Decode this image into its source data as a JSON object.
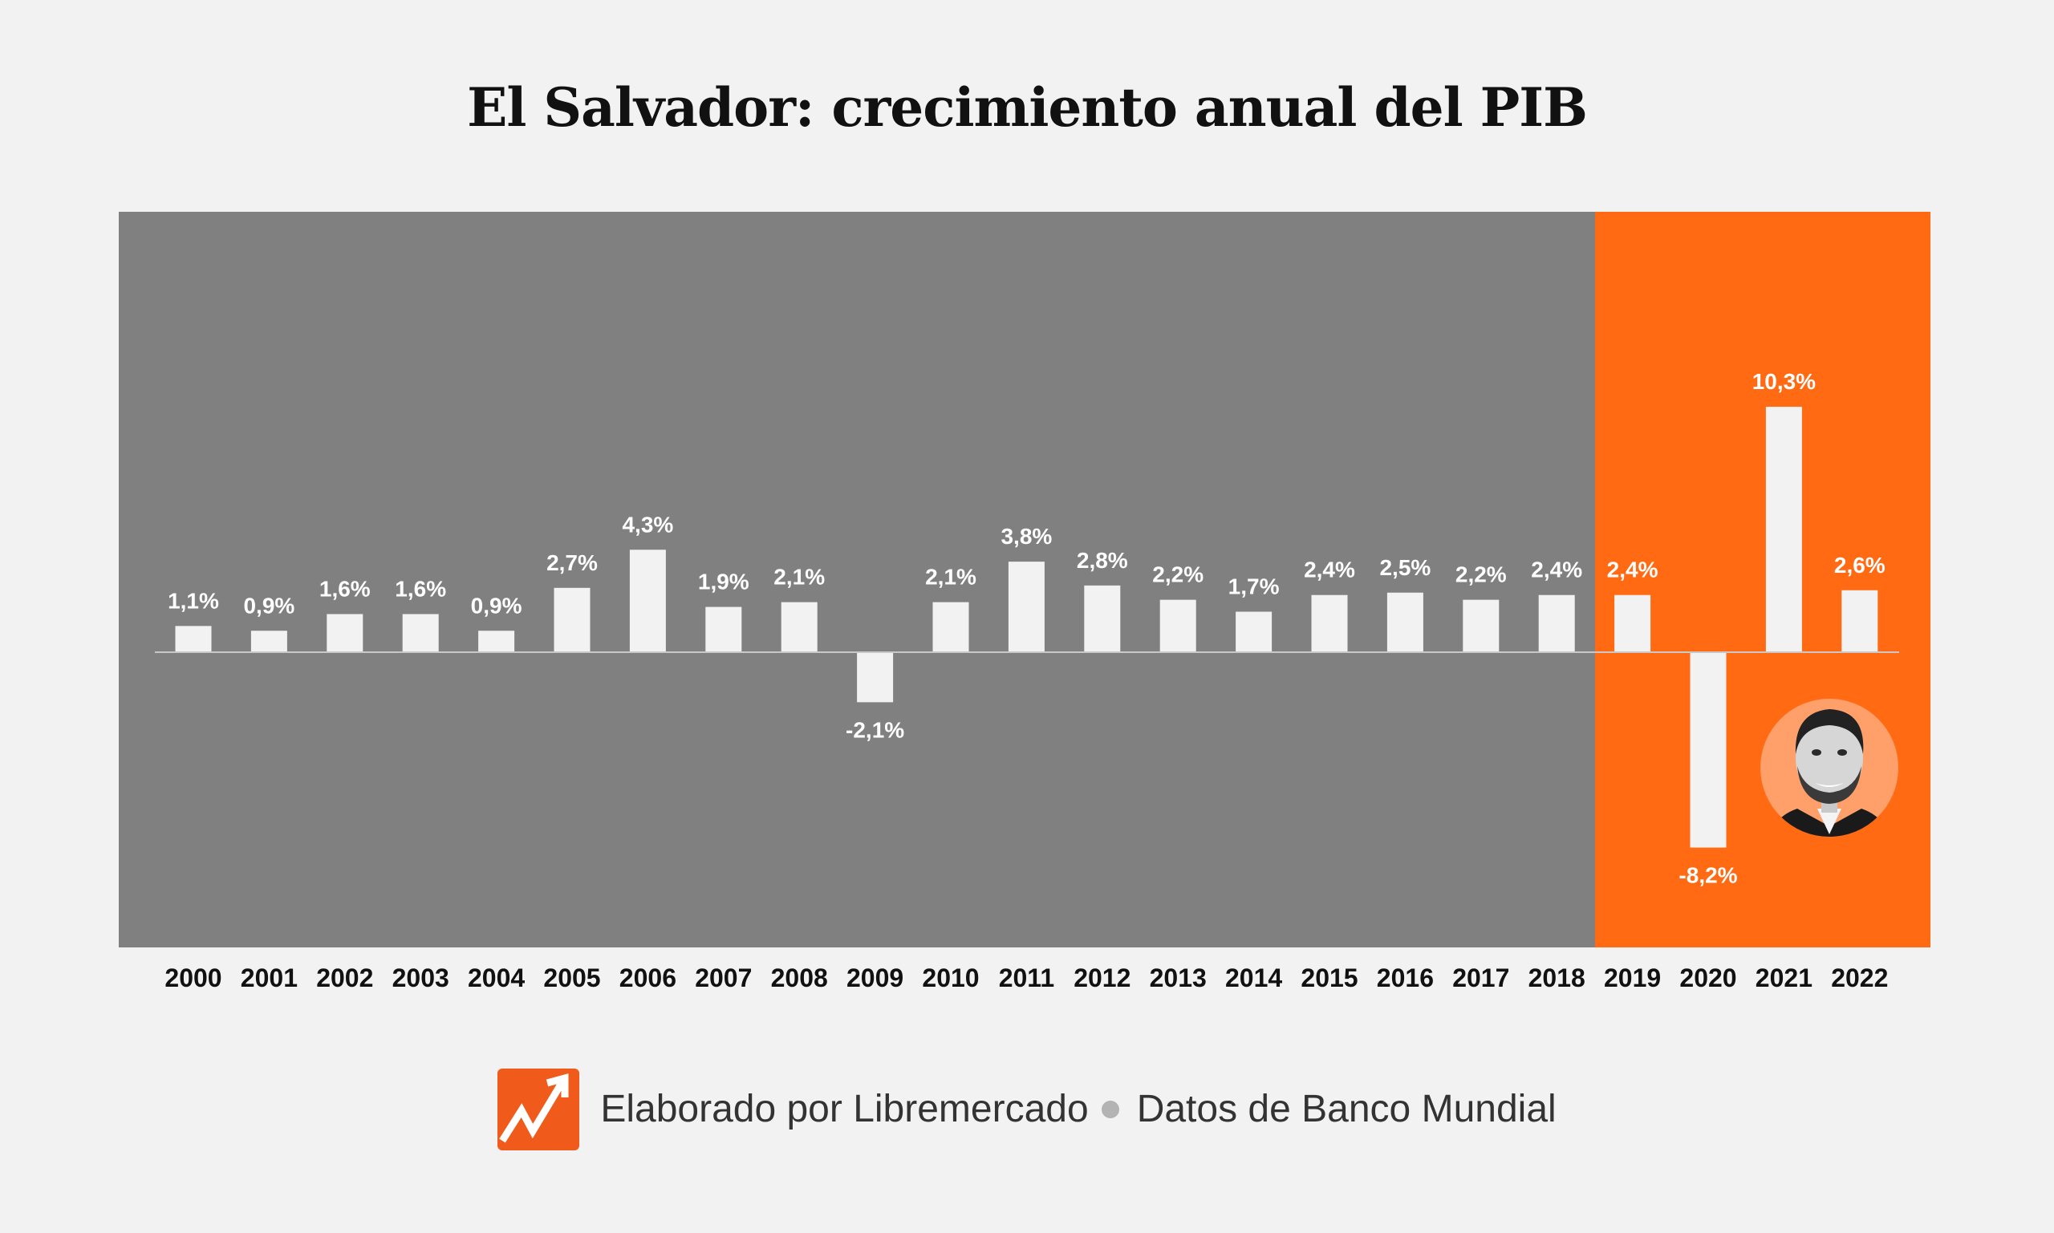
{
  "title": "El Salvador: crecimiento anual del PIB",
  "chart_data": {
    "type": "bar",
    "title": "El Salvador: crecimiento anual del PIB",
    "xlabel": "",
    "ylabel": "",
    "grid": false,
    "categories": [
      "2000",
      "2001",
      "2002",
      "2003",
      "2004",
      "2005",
      "2006",
      "2007",
      "2008",
      "2009",
      "2010",
      "2011",
      "2012",
      "2013",
      "2014",
      "2015",
      "2016",
      "2017",
      "2018",
      "2019",
      "2020",
      "2021",
      "2022"
    ],
    "values": [
      1.1,
      0.9,
      1.6,
      1.6,
      0.9,
      2.7,
      4.3,
      1.9,
      2.1,
      -2.1,
      2.1,
      3.8,
      2.8,
      2.2,
      1.7,
      2.4,
      2.5,
      2.2,
      2.4,
      2.4,
      -8.2,
      10.3,
      2.6
    ],
    "labels": [
      "1,1%",
      "0,9%",
      "1,6%",
      "1,6%",
      "0,9%",
      "2,7%",
      "4,3%",
      "1,9%",
      "2,1%",
      "-2,1%",
      "2,1%",
      "3,8%",
      "2,8%",
      "2,2%",
      "1,7%",
      "2,4%",
      "2,5%",
      "2,2%",
      "2,4%",
      "2,4%",
      "-8,2%",
      "10,3%",
      "2,6%"
    ],
    "ylim": [
      -10.1,
      15.0
    ],
    "highlight_period": {
      "from": "2019",
      "to": "2022",
      "color": "#ff6a13"
    },
    "background_color": "#808080",
    "bar_color": "#f2f2f2"
  },
  "footer": {
    "credit": "Elaborado por Libremercado",
    "source": "Datos de Banco Mundial",
    "logo_color": "#f05a1a"
  },
  "portrait": {
    "icon": "portrait-avatar",
    "ring_color": "#ffa06a"
  }
}
